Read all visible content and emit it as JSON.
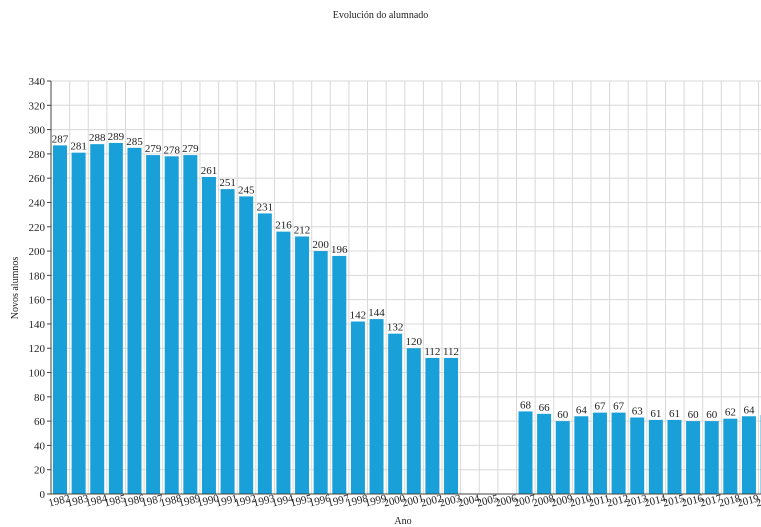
{
  "chart_data": {
    "type": "bar",
    "title": "Evolución do alumnado",
    "xlabel": "Ano",
    "ylabel": "Novos alumnos",
    "ylim": [
      0,
      340
    ],
    "ytick_step": 20,
    "grid": true,
    "bar_color": "#1aa0d8",
    "categories": [
      "1982",
      "1983",
      "1984",
      "1985",
      "1986",
      "1987",
      "1988",
      "1989",
      "1990",
      "1991",
      "1992",
      "1993",
      "1994",
      "1995",
      "1996",
      "1997",
      "1998",
      "1999",
      "2000",
      "2001",
      "2002",
      "2003",
      "2004",
      "2005",
      "2006",
      "2007",
      "2008",
      "2009",
      "2010",
      "2011",
      "2012",
      "2013",
      "2014",
      "2015",
      "2016",
      "2017",
      "2018",
      "2019",
      "2020"
    ],
    "values": [
      287,
      281,
      288,
      289,
      285,
      279,
      278,
      279,
      261,
      251,
      245,
      231,
      216,
      212,
      200,
      196,
      142,
      144,
      132,
      120,
      112,
      112,
      null,
      null,
      null,
      68,
      66,
      60,
      64,
      67,
      67,
      63,
      61,
      61,
      60,
      60,
      62,
      64,
      65
    ]
  }
}
